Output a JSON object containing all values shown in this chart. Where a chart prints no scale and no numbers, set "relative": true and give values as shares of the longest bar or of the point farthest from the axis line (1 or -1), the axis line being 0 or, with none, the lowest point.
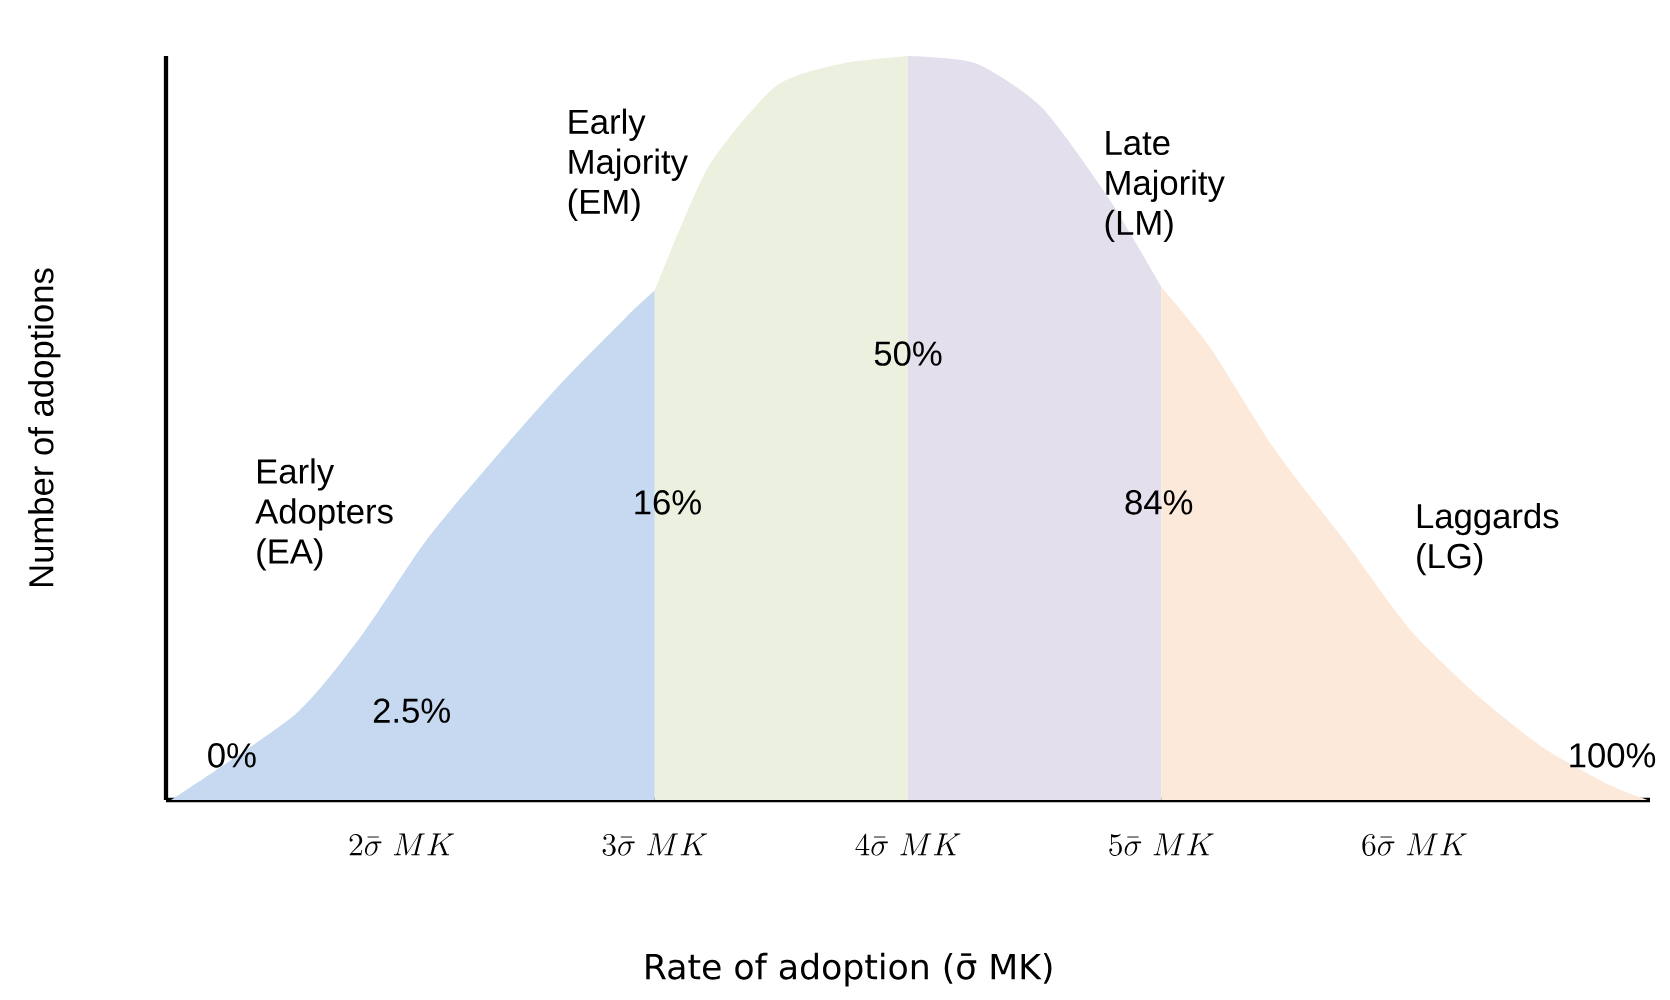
{
  "chart_data": {
    "type": "area",
    "relative": true,
    "xlabel": "Rate of adoption (σ̄ MK)",
    "ylabel": "Number of adoptions",
    "xlim": [
      1.07,
      6.93
    ],
    "xticks": [
      {
        "value": 2,
        "label": "2\\bar{\\sigma}\\ MK"
      },
      {
        "value": 3,
        "label": "3\\bar{\\sigma}\\ MK"
      },
      {
        "value": 4,
        "label": "4\\bar{\\sigma}\\ MK"
      },
      {
        "value": 5,
        "label": "5\\bar{\\sigma}\\ MK"
      },
      {
        "value": 6,
        "label": "6\\bar{\\sigma}\\ MK"
      }
    ],
    "tick_labels": "x",
    "series": [
      {
        "name": "Early Adopters (EA)",
        "color": "#c6d9f0",
        "x": [
          1.09,
          1.58,
          1.84,
          2.1,
          2.37,
          2.63,
          2.89,
          3.0
        ],
        "values": [
          0,
          0.115,
          0.22,
          0.35,
          0.46,
          0.56,
          0.65,
          0.685
        ]
      },
      {
        "name": "Early Majority (EM)",
        "color": "#ebf1de",
        "x": [
          3.0,
          3.21,
          3.48,
          3.74,
          4.0
        ],
        "values": [
          0.685,
          0.85,
          0.96,
          0.99,
          1.0
        ]
      },
      {
        "name": "Late Majority (LM)",
        "color": "#e4dfec",
        "x": [
          4.0,
          4.27,
          4.53,
          4.79,
          5.0
        ],
        "values": [
          1.0,
          0.99,
          0.93,
          0.81,
          0.69
        ]
      },
      {
        "name": "Laggards (LG)",
        "color": "#fde9d9",
        "x": [
          5.0,
          5.19,
          5.45,
          5.72,
          5.98,
          6.25,
          6.51,
          6.77,
          6.92
        ],
        "values": [
          0.69,
          0.61,
          0.47,
          0.35,
          0.23,
          0.14,
          0.07,
          0.02,
          0
        ]
      }
    ],
    "annotations": [
      "0%",
      "2.5%",
      "16%",
      "50%",
      "84%",
      "100%"
    ]
  }
}
